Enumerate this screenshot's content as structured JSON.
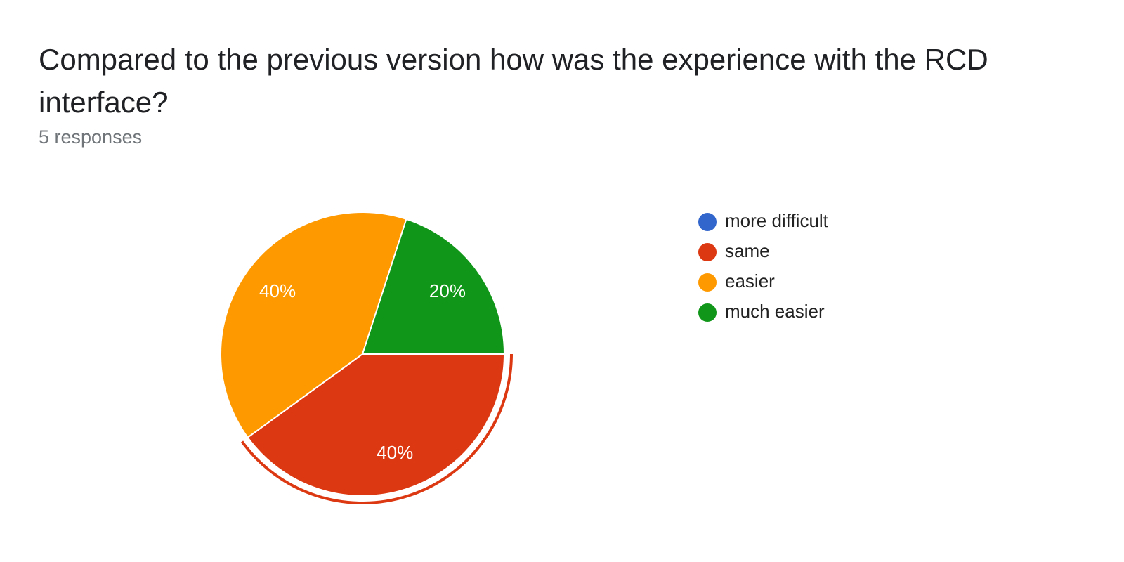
{
  "chart_data": {
    "type": "pie",
    "title": "Compared to the previous version how was the experience with the RCD interface?",
    "subtitle": "5 responses",
    "categories": [
      "more difficult",
      "same",
      "easier",
      "much easier"
    ],
    "values": [
      0,
      40,
      40,
      20
    ],
    "value_labels": [
      null,
      "40%",
      "40%",
      "20%"
    ],
    "colors": [
      "#3366cc",
      "#dc3912",
      "#ff9900",
      "#109618"
    ],
    "highlight": "same",
    "legend": "right"
  }
}
